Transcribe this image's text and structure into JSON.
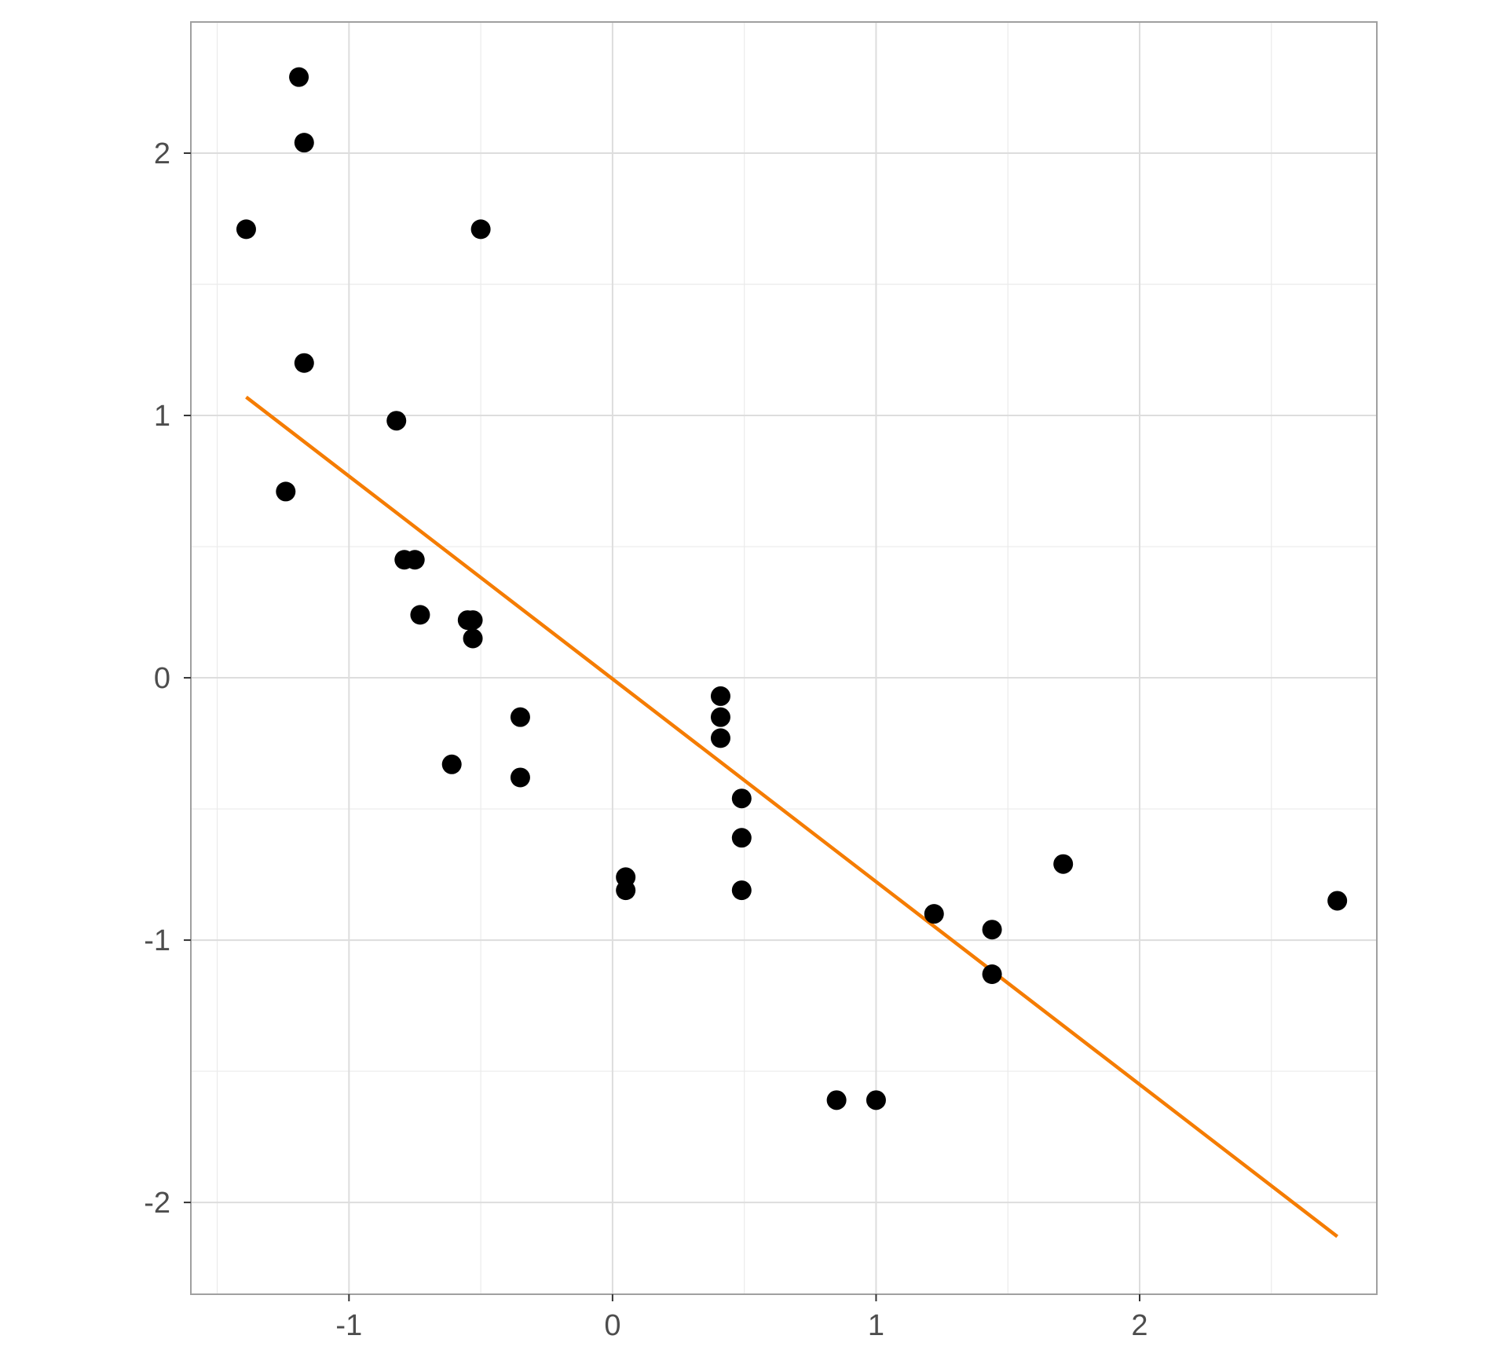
{
  "chart_data": {
    "type": "scatter",
    "title": "",
    "xlabel": "",
    "ylabel": "",
    "xlim": [
      -1.6,
      2.9
    ],
    "ylim": [
      -2.35,
      2.5
    ],
    "x_ticks": [
      -1,
      0,
      1,
      2
    ],
    "x_tick_labels": [
      "-1",
      "0",
      "1",
      "2"
    ],
    "y_ticks": [
      -2,
      -1,
      0,
      1,
      2
    ],
    "y_tick_labels": [
      "-2",
      "-1",
      "0",
      "1",
      "2"
    ],
    "x_minor_gridlines": [
      -1.5,
      -0.5,
      0.5,
      1.5,
      2.5
    ],
    "y_minor_gridlines": [
      -1.5,
      -0.5,
      0.5,
      1.5
    ],
    "grid": true,
    "point_color": "#000000",
    "line_color": "#F57C00",
    "panel_border_color": "#A0A0A0",
    "gridline_color": "#DDDDDD",
    "tick_label_color": "#4D4D4D",
    "points": [
      {
        "x": -1.39,
        "y": 1.71
      },
      {
        "x": -1.19,
        "y": 2.29
      },
      {
        "x": -1.17,
        "y": 2.04
      },
      {
        "x": -1.17,
        "y": 1.2
      },
      {
        "x": -1.24,
        "y": 0.71
      },
      {
        "x": -0.5,
        "y": 1.71
      },
      {
        "x": -0.82,
        "y": 0.98
      },
      {
        "x": -0.79,
        "y": 0.45
      },
      {
        "x": -0.75,
        "y": 0.45
      },
      {
        "x": -0.73,
        "y": 0.24
      },
      {
        "x": -0.55,
        "y": 0.22
      },
      {
        "x": -0.53,
        "y": 0.22
      },
      {
        "x": -0.53,
        "y": 0.15
      },
      {
        "x": -0.35,
        "y": -0.15
      },
      {
        "x": -0.35,
        "y": -0.38
      },
      {
        "x": -0.61,
        "y": -0.33
      },
      {
        "x": 0.05,
        "y": -0.76
      },
      {
        "x": 0.05,
        "y": -0.81
      },
      {
        "x": 0.41,
        "y": -0.07
      },
      {
        "x": 0.41,
        "y": -0.15
      },
      {
        "x": 0.41,
        "y": -0.23
      },
      {
        "x": 0.49,
        "y": -0.46
      },
      {
        "x": 0.49,
        "y": -0.61
      },
      {
        "x": 0.49,
        "y": -0.81
      },
      {
        "x": 0.85,
        "y": -1.61
      },
      {
        "x": 1.0,
        "y": -1.61
      },
      {
        "x": 1.22,
        "y": -0.9
      },
      {
        "x": 1.44,
        "y": -0.96
      },
      {
        "x": 1.44,
        "y": -1.13
      },
      {
        "x": 1.71,
        "y": -0.71
      },
      {
        "x": 2.75,
        "y": -0.85
      }
    ],
    "fit_line": {
      "x": [
        -1.39,
        2.75
      ],
      "y": [
        1.07,
        -2.13
      ]
    }
  }
}
